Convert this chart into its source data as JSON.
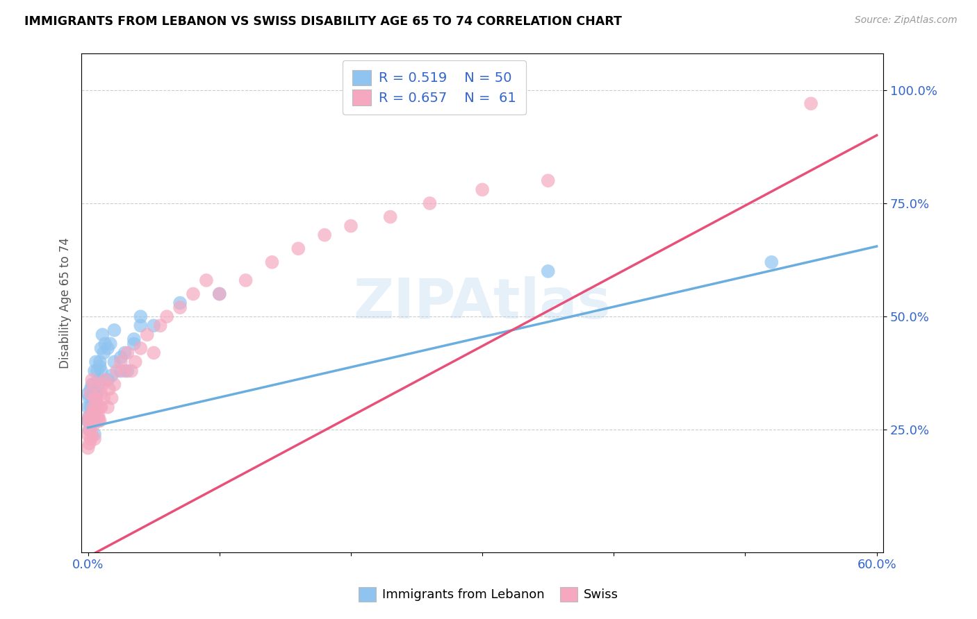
{
  "title": "IMMIGRANTS FROM LEBANON VS SWISS DISABILITY AGE 65 TO 74 CORRELATION CHART",
  "source": "Source: ZipAtlas.com",
  "ylabel": "Disability Age 65 to 74",
  "xlim": [
    -0.005,
    0.605
  ],
  "ylim": [
    -0.02,
    1.08
  ],
  "xticks": [
    0.0,
    0.1,
    0.2,
    0.3,
    0.4,
    0.5,
    0.6
  ],
  "xticklabels": [
    "0.0%",
    "",
    "",
    "",
    "",
    "",
    "60.0%"
  ],
  "ytick_positions": [
    0.25,
    0.5,
    0.75,
    1.0
  ],
  "yticklabels": [
    "25.0%",
    "50.0%",
    "75.0%",
    "100.0%"
  ],
  "color_lebanon": "#90C4F0",
  "color_swiss": "#F5A8C0",
  "color_line_lebanon": "#6AAEE0",
  "color_line_swiss": "#E8507A",
  "lebanon_r": 0.519,
  "lebanon_n": 50,
  "swiss_r": 0.657,
  "swiss_n": 61,
  "lebanon_line_x0": 0.0,
  "lebanon_line_y0": 0.255,
  "lebanon_line_x1": 0.6,
  "lebanon_line_y1": 0.655,
  "swiss_line_x0": 0.0,
  "swiss_line_y0": -0.03,
  "swiss_line_x1": 0.6,
  "swiss_line_y1": 0.9,
  "lebanon_x": [
    0.0,
    0.0,
    0.0,
    0.001,
    0.001,
    0.001,
    0.002,
    0.002,
    0.002,
    0.003,
    0.003,
    0.003,
    0.004,
    0.004,
    0.005,
    0.005,
    0.005,
    0.006,
    0.007,
    0.008,
    0.009,
    0.01,
    0.012,
    0.015,
    0.017,
    0.02,
    0.025,
    0.028,
    0.035,
    0.04,
    0.005,
    0.006,
    0.007,
    0.008,
    0.009,
    0.01,
    0.011,
    0.013,
    0.015,
    0.018,
    0.02,
    0.025,
    0.03,
    0.035,
    0.04,
    0.05,
    0.07,
    0.1,
    0.35,
    0.52
  ],
  "lebanon_y": [
    0.27,
    0.3,
    0.33,
    0.25,
    0.28,
    0.32,
    0.26,
    0.3,
    0.34,
    0.27,
    0.32,
    0.35,
    0.28,
    0.33,
    0.24,
    0.29,
    0.33,
    0.31,
    0.38,
    0.35,
    0.4,
    0.38,
    0.42,
    0.36,
    0.44,
    0.4,
    0.38,
    0.42,
    0.44,
    0.48,
    0.38,
    0.4,
    0.33,
    0.36,
    0.39,
    0.43,
    0.46,
    0.44,
    0.43,
    0.37,
    0.47,
    0.41,
    0.38,
    0.45,
    0.5,
    0.48,
    0.53,
    0.55,
    0.6,
    0.62
  ],
  "swiss_x": [
    0.0,
    0.0,
    0.0,
    0.001,
    0.001,
    0.001,
    0.002,
    0.002,
    0.003,
    0.003,
    0.004,
    0.004,
    0.005,
    0.005,
    0.006,
    0.007,
    0.008,
    0.009,
    0.01,
    0.011,
    0.012,
    0.013,
    0.015,
    0.016,
    0.018,
    0.02,
    0.022,
    0.025,
    0.028,
    0.03,
    0.033,
    0.036,
    0.04,
    0.045,
    0.05,
    0.055,
    0.06,
    0.07,
    0.08,
    0.09,
    0.1,
    0.12,
    0.14,
    0.16,
    0.18,
    0.2,
    0.23,
    0.26,
    0.3,
    0.35,
    0.002,
    0.003,
    0.004,
    0.004,
    0.005,
    0.006,
    0.007,
    0.008,
    0.009,
    0.01,
    0.55
  ],
  "swiss_y": [
    0.21,
    0.24,
    0.27,
    0.22,
    0.25,
    0.28,
    0.23,
    0.27,
    0.24,
    0.28,
    0.26,
    0.3,
    0.23,
    0.29,
    0.32,
    0.28,
    0.27,
    0.3,
    0.33,
    0.35,
    0.32,
    0.36,
    0.3,
    0.34,
    0.32,
    0.35,
    0.38,
    0.4,
    0.38,
    0.42,
    0.38,
    0.4,
    0.43,
    0.46,
    0.42,
    0.48,
    0.5,
    0.52,
    0.55,
    0.58,
    0.55,
    0.58,
    0.62,
    0.65,
    0.68,
    0.7,
    0.72,
    0.75,
    0.78,
    0.8,
    0.33,
    0.36,
    0.29,
    0.35,
    0.32,
    0.27,
    0.3,
    0.28,
    0.27,
    0.3,
    0.97
  ]
}
